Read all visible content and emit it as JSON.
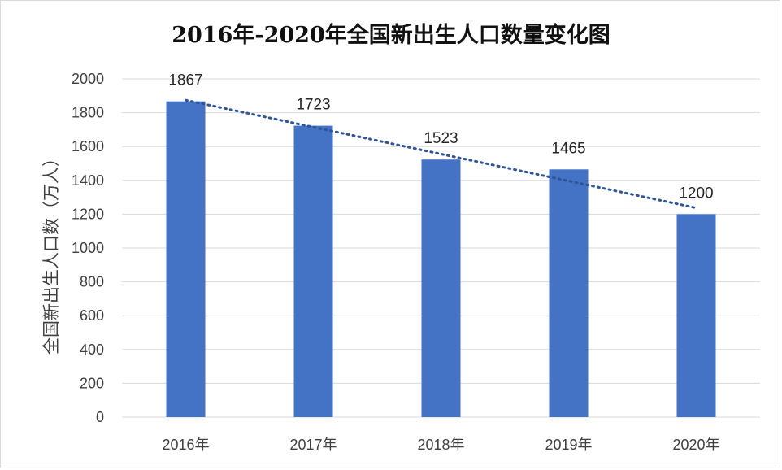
{
  "chart_data": {
    "type": "bar",
    "title": "2016年-2020年全国新出生人口数量变化图",
    "ylabel": "全国新出生人口数（万人）",
    "xlabel": "",
    "categories": [
      "2016年",
      "2017年",
      "2018年",
      "2019年",
      "2020年"
    ],
    "values": [
      1867,
      1723,
      1523,
      1465,
      1200
    ],
    "data_labels": [
      "1867",
      "1723",
      "1523",
      "1465",
      "1200"
    ],
    "ylim": [
      0,
      2000
    ],
    "yticks": [
      "0",
      "200",
      "400",
      "600",
      "800",
      "1000",
      "1200",
      "1400",
      "1600",
      "1800",
      "2000"
    ],
    "trendline": {
      "type": "linear",
      "style": "dotted"
    },
    "grid": true,
    "legend": "none",
    "colors": {
      "bar": "#4472C4",
      "trend": "#2F5597",
      "grid": "#d9d9d9"
    }
  }
}
